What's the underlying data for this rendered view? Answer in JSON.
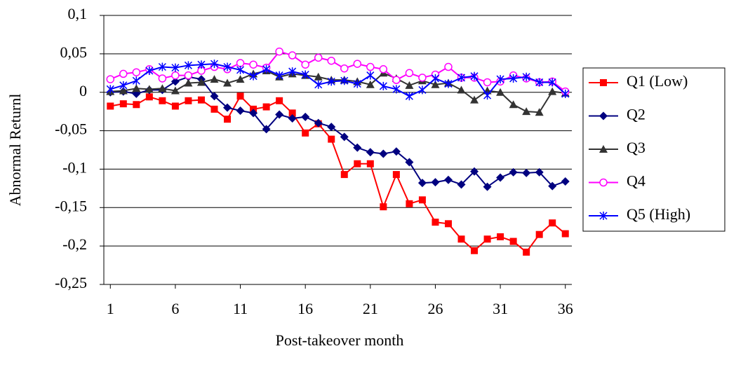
{
  "chart_data": {
    "type": "line",
    "x_label": "Post-takeover month",
    "y_label": "Abnormal Returnl",
    "x": [
      1,
      2,
      3,
      4,
      5,
      6,
      7,
      8,
      9,
      10,
      11,
      12,
      13,
      14,
      15,
      16,
      17,
      18,
      19,
      20,
      21,
      22,
      23,
      24,
      25,
      26,
      27,
      28,
      29,
      30,
      31,
      32,
      33,
      34,
      35,
      36
    ],
    "xlim": [
      0.5,
      36.5
    ],
    "xticks": [
      1,
      6,
      11,
      16,
      21,
      26,
      31,
      36
    ],
    "ylim": [
      -0.25,
      0.1
    ],
    "yticks": [
      {
        "value": 0.1,
        "label": "0,1"
      },
      {
        "value": 0.05,
        "label": "0,05"
      },
      0,
      {
        "value": -0.05,
        "label": "-0,05"
      },
      {
        "value": -0.1,
        "label": "-0,1"
      },
      {
        "value": -0.15,
        "label": "-0,15"
      },
      {
        "value": -0.2,
        "label": "-0,2"
      },
      {
        "value": -0.25,
        "label": "-0,25"
      }
    ],
    "grid": true,
    "legend": "right",
    "series": [
      {
        "name": "Q1 (Low)",
        "color": "#ff0000",
        "marker": "square",
        "values": [
          -0.018,
          -0.015,
          -0.016,
          -0.006,
          -0.011,
          -0.018,
          -0.011,
          -0.01,
          -0.022,
          -0.035,
          -0.005,
          -0.022,
          -0.019,
          -0.011,
          -0.027,
          -0.053,
          -0.041,
          -0.061,
          -0.107,
          -0.093,
          -0.093,
          -0.149,
          -0.107,
          -0.145,
          -0.14,
          -0.169,
          -0.171,
          -0.191,
          -0.206,
          -0.191,
          -0.188,
          -0.194,
          -0.208,
          -0.185,
          -0.17,
          -0.184
        ]
      },
      {
        "name": "Q2",
        "color": "#000080",
        "marker": "diamond",
        "values": [
          0,
          0.001,
          -0.002,
          0.003,
          0.003,
          0.014,
          0.02,
          0.017,
          -0.005,
          -0.02,
          -0.024,
          -0.027,
          -0.048,
          -0.029,
          -0.034,
          -0.032,
          -0.04,
          -0.045,
          -0.058,
          -0.072,
          -0.078,
          -0.08,
          -0.077,
          -0.091,
          -0.118,
          -0.117,
          -0.114,
          -0.12,
          -0.103,
          -0.123,
          -0.111,
          -0.104,
          -0.105,
          -0.104,
          -0.122,
          -0.116
        ]
      },
      {
        "name": "Q3",
        "color": "#333333",
        "marker": "triangle",
        "values": [
          0.001,
          0.002,
          0.005,
          0.004,
          0.005,
          0.002,
          0.012,
          0.013,
          0.017,
          0.012,
          0.017,
          0.024,
          0.028,
          0.02,
          0.024,
          0.022,
          0.02,
          0.016,
          0.016,
          0.014,
          0.01,
          0.025,
          0.018,
          0.009,
          0.015,
          0.01,
          0.012,
          0.003,
          -0.01,
          0.002,
          0,
          -0.016,
          -0.025,
          -0.026,
          0.001,
          -0.001
        ]
      },
      {
        "name": "Q4",
        "color": "#ff00ff",
        "marker": "circle",
        "values": [
          0.017,
          0.024,
          0.026,
          0.03,
          0.018,
          0.022,
          0.022,
          0.028,
          0.033,
          0.03,
          0.038,
          0.036,
          0.032,
          0.053,
          0.048,
          0.036,
          0.045,
          0.041,
          0.031,
          0.037,
          0.033,
          0.03,
          0.016,
          0.025,
          0.019,
          0.023,
          0.033,
          0.019,
          0.019,
          0.013,
          0.014,
          0.022,
          0.018,
          0.013,
          0.014,
          0.001
        ]
      },
      {
        "name": "Q5 (High)",
        "color": "#0000ff",
        "marker": "star",
        "values": [
          0.004,
          0.009,
          0.015,
          0.028,
          0.033,
          0.032,
          0.035,
          0.036,
          0.037,
          0.033,
          0.029,
          0.021,
          0.03,
          0.022,
          0.027,
          0.023,
          0.01,
          0.014,
          0.015,
          0.011,
          0.022,
          0.008,
          0.004,
          -0.005,
          0.003,
          0.018,
          0.011,
          0.019,
          0.021,
          -0.004,
          0.017,
          0.018,
          0.02,
          0.013,
          0.013,
          -0.002
        ]
      }
    ]
  }
}
